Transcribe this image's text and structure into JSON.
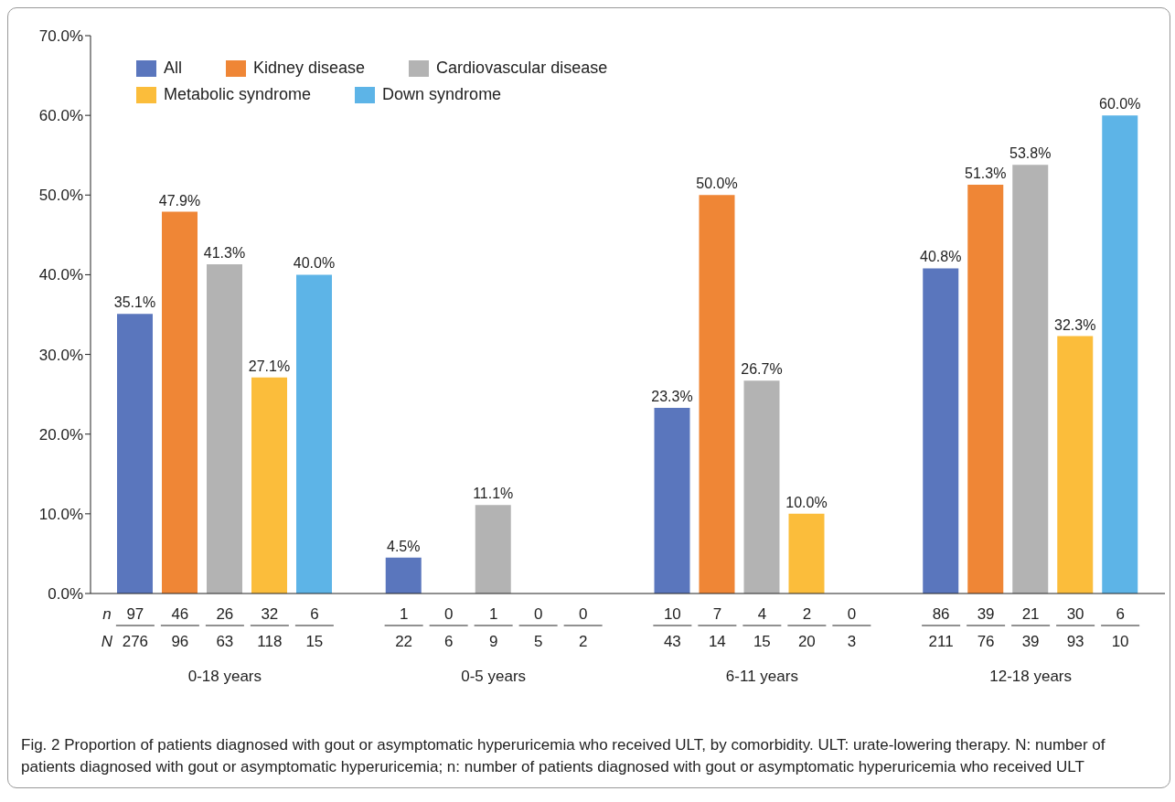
{
  "chart_data": {
    "type": "bar",
    "categories": [
      "0-18 years",
      "0-5 years",
      "6-11 years",
      "12-18 years"
    ],
    "series": [
      {
        "name": "All",
        "color": "#5a76bd",
        "values": [
          35.1,
          4.5,
          23.3,
          40.8
        ],
        "value_labels": [
          "35.1%",
          "4.5%",
          "23.3%",
          "40.8%"
        ]
      },
      {
        "name": "Kidney disease",
        "color": "#ef8636",
        "values": [
          47.9,
          0,
          50.0,
          51.3
        ],
        "value_labels": [
          "47.9%",
          null,
          "50.0%",
          "51.3%"
        ]
      },
      {
        "name": "Cardiovascular disease",
        "color": "#b3b3b3",
        "values": [
          41.3,
          11.1,
          26.7,
          53.8
        ],
        "value_labels": [
          "41.3%",
          "11.1%",
          "26.7%",
          "53.8%"
        ]
      },
      {
        "name": "Metabolic syndrome",
        "color": "#fbbd3b",
        "values": [
          27.1,
          0,
          10.0,
          32.3
        ],
        "value_labels": [
          "27.1%",
          null,
          "10.0%",
          "32.3%"
        ]
      },
      {
        "name": "Down syndrome",
        "color": "#5db4e7",
        "values": [
          40.0,
          0,
          0,
          60.0
        ],
        "value_labels": [
          "40.0%",
          null,
          null,
          "60.0%"
        ]
      }
    ],
    "ylim": [
      0,
      70
    ],
    "yticks": [
      {
        "value": 0,
        "label": "0.0%"
      },
      {
        "value": 10,
        "label": "10.0%"
      },
      {
        "value": 20,
        "label": "20.0%"
      },
      {
        "value": 30,
        "label": "30.0%"
      },
      {
        "value": 40,
        "label": "40.0%"
      },
      {
        "value": 50,
        "label": "50.0%"
      },
      {
        "value": 60,
        "label": "60.0%"
      },
      {
        "value": 70,
        "label": "70.0%"
      }
    ],
    "grid": false,
    "legend": "top left",
    "annotations": [
      "Fig. 2  Proportion of patients diagnosed with gout or asymptomatic hyperuricemia who received ULT, by comorbidity. ULT: urate-lowering therapy. N: number of patients diagnosed with gout or asymptomatic hyperuricemia; n: number of patients diagnosed with gout or asymptomatic hyperuricemia who received ULT",
      "n",
      "N",
      "97",
      "46",
      "26",
      "32",
      "6",
      "1",
      "0",
      "1",
      "0",
      "0",
      "10",
      "7",
      "4",
      "2",
      "0",
      "86",
      "39",
      "21",
      "30",
      "6",
      "276",
      "96",
      "63",
      "118",
      "15",
      "22",
      "6",
      "9",
      "5",
      "2",
      "43",
      "14",
      "15",
      "20",
      "3",
      "211",
      "76",
      "39",
      "93",
      "10"
    ]
  }
}
